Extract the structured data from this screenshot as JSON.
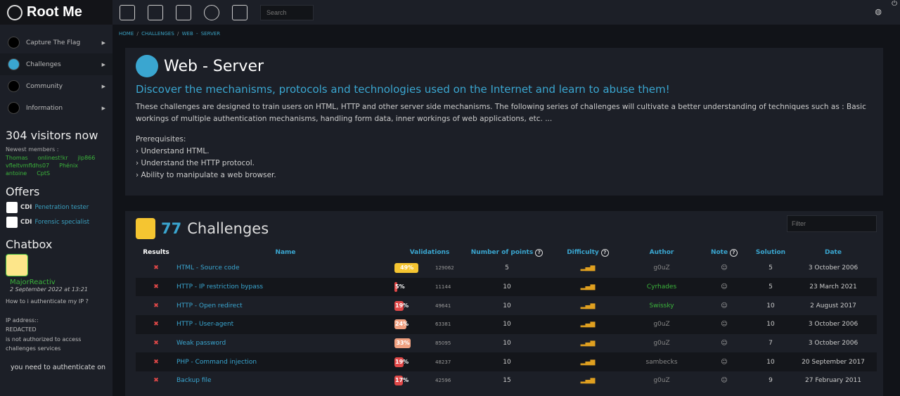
{
  "brand": "Root Me",
  "topbar": {
    "search_placeholder": "Search",
    "icons": [
      "ctf-icon",
      "tools-icon",
      "documents-icon",
      "target-icon",
      "cart-icon"
    ]
  },
  "sidebar": {
    "nav": [
      "Capture The Flag",
      "Challenges",
      "Community",
      "Information"
    ],
    "visitors": "304 visitors now",
    "newest_label": "Newest members :",
    "members": [
      "Thomas",
      "onlinest!kr",
      "jlp866",
      "vfleltvmfldhs07",
      "Phénix",
      "antoine",
      "CptS"
    ],
    "offers_title": "Offers",
    "offers": [
      {
        "type": "CDI",
        "title": "Penetration tester"
      },
      {
        "type": "CDI",
        "title": "Forensic specialist"
      }
    ],
    "chat_title": "Chatbox",
    "chat_user": "MajorReactiv",
    "chat_date": "2 September 2022 at 13:21",
    "chat_msg": [
      "How to i authenticate my IP ?",
      "",
      "IP address::",
      "REDACTED",
      "is not authorized to access",
      "challenges services"
    ],
    "chat_reply": "you need to authenticate on"
  },
  "breadcrumb": [
    "HOME",
    "CHALLENGES",
    "WEB - SERVER"
  ],
  "header": {
    "title": "Web - Server",
    "subtitle": "Discover the mechanisms, protocols and technologies used on the Internet and learn to abuse them!",
    "description": "These challenges are designed to train users on HTML, HTTP and other server side mechanisms. The following series of challenges will cultivate a better understanding of techniques such as : Basic workings of multiple authentication mechanisms, handling form data, inner workings of web applications, etc. ...",
    "prereq_title": "Prerequisites:",
    "prereqs": [
      "Understand HTML.",
      "Understand the HTTP protocol.",
      "Ability to manipulate a web browser."
    ]
  },
  "challenges": {
    "count": "77",
    "label": "Challenges",
    "filter_placeholder": "Filter",
    "columns": [
      "Results",
      "Name",
      "Validations",
      "Number of points",
      "Difficulty",
      "Author",
      "Note",
      "Solution",
      "Date"
    ],
    "rows": [
      {
        "name": "HTML - Source code",
        "pct": "49%",
        "pct_value": 49,
        "color": "#f5c531",
        "count": "129062",
        "points": "5",
        "author": "g0uZ",
        "author_color": "#888",
        "solution": "5",
        "date": "3 October 2006"
      },
      {
        "name": "HTTP - IP restriction bypass",
        "pct": "5%",
        "pct_value": 5,
        "color": "#e04848",
        "count": "11144",
        "points": "10",
        "author": "Cyrhades",
        "author_color": "#3bb33b",
        "solution": "5",
        "date": "23 March 2021"
      },
      {
        "name": "HTTP - Open redirect",
        "pct": "19%",
        "pct_value": 19,
        "color": "#e04848",
        "count": "49641",
        "points": "10",
        "author": "Swissky",
        "author_color": "#3bb33b",
        "solution": "10",
        "date": "2 August 2017"
      },
      {
        "name": "HTTP - User-agent",
        "pct": "24%",
        "pct_value": 24,
        "color": "#f0a080",
        "count": "63381",
        "points": "10",
        "author": "g0uZ",
        "author_color": "#888",
        "solution": "10",
        "date": "3 October 2006"
      },
      {
        "name": "Weak password",
        "pct": "33%",
        "pct_value": 33,
        "color": "#f0a080",
        "count": "85095",
        "points": "10",
        "author": "g0uZ",
        "author_color": "#888",
        "solution": "7",
        "date": "3 October 2006"
      },
      {
        "name": "PHP - Command injection",
        "pct": "19%",
        "pct_value": 19,
        "color": "#e04848",
        "count": "48237",
        "points": "10",
        "author": "sambecks",
        "author_color": "#888",
        "solution": "10",
        "date": "20 September 2017"
      },
      {
        "name": "Backup file",
        "pct": "17%",
        "pct_value": 17,
        "color": "#e04848",
        "count": "42596",
        "points": "15",
        "author": "g0uZ",
        "author_color": "#888",
        "solution": "9",
        "date": "27 February 2011"
      }
    ]
  }
}
